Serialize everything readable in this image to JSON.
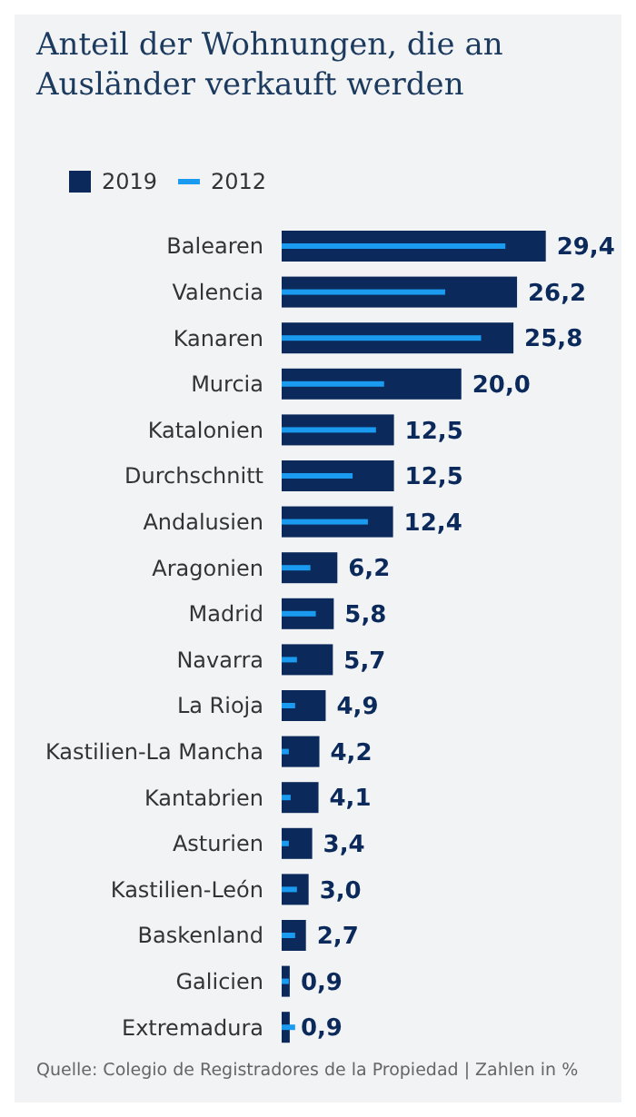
{
  "chart_data": {
    "type": "bar",
    "orientation": "horizontal",
    "title": "Anteil der Wohnungen, die an Ausländer verkauft werden",
    "legend": "top left",
    "categories": [
      "Balearen",
      "Valencia",
      "Kanaren",
      "Murcia",
      "Katalonien",
      "Durchschnitt",
      "Andalusien",
      "Aragonien",
      "Madrid",
      "Navarra",
      "La Rioja",
      "Kastilien-La Mancha",
      "Kantabrien",
      "Asturien",
      "Kastilien-León",
      "Baskenland",
      "Galicien",
      "Extremadura"
    ],
    "series": [
      {
        "name": "2019",
        "color": "#0b2a5b",
        "values": [
          29.4,
          26.2,
          25.8,
          20.0,
          12.5,
          12.5,
          12.4,
          6.2,
          5.8,
          5.7,
          4.9,
          4.2,
          4.1,
          3.4,
          3.0,
          2.7,
          0.9,
          0.9
        ],
        "value_labels": [
          "29,4",
          "26,2",
          "25,8",
          "20,0",
          "12,5",
          "12,5",
          "12,4",
          "6,2",
          "5,8",
          "5,7",
          "4,9",
          "4,2",
          "4,1",
          "3,4",
          "3,0",
          "2,7",
          "0,9",
          "0,9"
        ]
      },
      {
        "name": "2012",
        "color": "#1a9bf0",
        "values": [
          24.9,
          18.2,
          22.2,
          11.4,
          10.5,
          7.9,
          9.6,
          3.2,
          3.8,
          1.7,
          1.5,
          0.8,
          1.0,
          0.8,
          1.7,
          1.5,
          0.8,
          1.5
        ]
      }
    ],
    "annotations": [
      "Quelle: Colegio de Registradores de la Propiedad | Zahlen in %"
    ]
  }
}
